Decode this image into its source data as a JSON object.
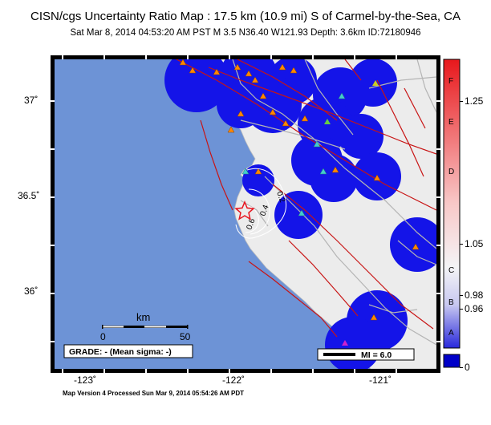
{
  "header": {
    "title": "CISN/cgs Uncertainty Ratio Map : 17.5 km (10.9 mi) S of Carmel-by-the-Sea, CA",
    "subtitle": "Sat Mar  8, 2014 04:53:20 AM PST   M 3.5   N36.40 W121.93   Depth: 3.6km   ID:72180946"
  },
  "axes": {
    "lat_labels": [
      "37˚",
      "36.5˚",
      "36˚"
    ],
    "lon_labels": [
      "-123˚",
      "-122˚",
      "-121˚"
    ]
  },
  "contours": [
    "0.2",
    "0.4",
    "0.6"
  ],
  "scalebar": {
    "unit": "km",
    "ticks": [
      "0",
      "50"
    ]
  },
  "grade_box": "GRADE: - (Mean sigma: -)",
  "mi_legend": "MI = 6.0",
  "colorbar": {
    "letters": [
      "F",
      "E",
      "D",
      "C",
      "B",
      "A"
    ],
    "values": [
      "1.25",
      "1.05",
      "0.98",
      "0.96",
      "0"
    ],
    "colors": {
      "top": "#e8181c",
      "mid": "#f4f4f6",
      "bottom": "#2828dc",
      "base": "#0000c8"
    }
  },
  "colors": {
    "ocean": "#6d93d6",
    "land": "#ececec",
    "uncertainty_blob": "#1414e8",
    "fault": "#c81414",
    "road": "#b4b4b4",
    "station": "#ff8800",
    "epicenter": "#e8141e"
  },
  "footer": "Map Version 4 Processed Sun Mar  9, 2014 05:54:26 AM PDT"
}
